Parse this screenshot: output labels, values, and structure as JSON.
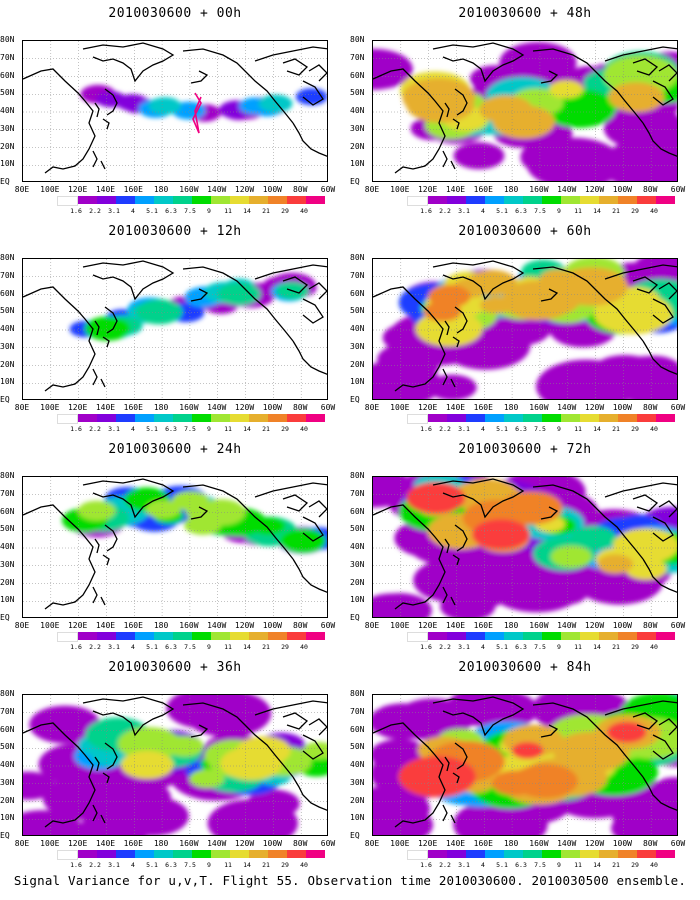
{
  "caption": "Signal Variance for u,v,T. Flight 55. Observation time 2010030600. 2010030500 ensemble.",
  "panels": [
    {
      "title": "2010030600 + 00h"
    },
    {
      "title": "2010030600 + 48h"
    },
    {
      "title": "2010030600 + 12h"
    },
    {
      "title": "2010030600 + 60h"
    },
    {
      "title": "2010030600 + 24h"
    },
    {
      "title": "2010030600 + 72h"
    },
    {
      "title": "2010030600 + 36h"
    },
    {
      "title": "2010030600 + 84h"
    }
  ],
  "lat_labels": [
    "80N",
    "70N",
    "60N",
    "50N",
    "40N",
    "30N",
    "20N",
    "10N",
    "EQ"
  ],
  "lon_labels": [
    "80E",
    "100E",
    "120E",
    "140E",
    "160E",
    "180",
    "160W",
    "140W",
    "120W",
    "100W",
    "80W",
    "60W"
  ],
  "colorbar": {
    "labels": [
      "1.6",
      "2.2",
      "3.1",
      "4",
      "5.1",
      "6.3",
      "7.5",
      "9",
      "11",
      "14",
      "21",
      "29",
      "40"
    ],
    "colors": [
      "#a000c8",
      "#8200dc",
      "#1e3cff",
      "#00a0ff",
      "#00c8c8",
      "#00d28c",
      "#00dc00",
      "#a0e632",
      "#e6dc32",
      "#e6af2d",
      "#f08228",
      "#fa3c3c",
      "#f00082"
    ]
  },
  "field_intensity": [
    0.1,
    0.75,
    0.3,
    0.85,
    0.5,
    0.9,
    0.65,
    1.0
  ]
}
